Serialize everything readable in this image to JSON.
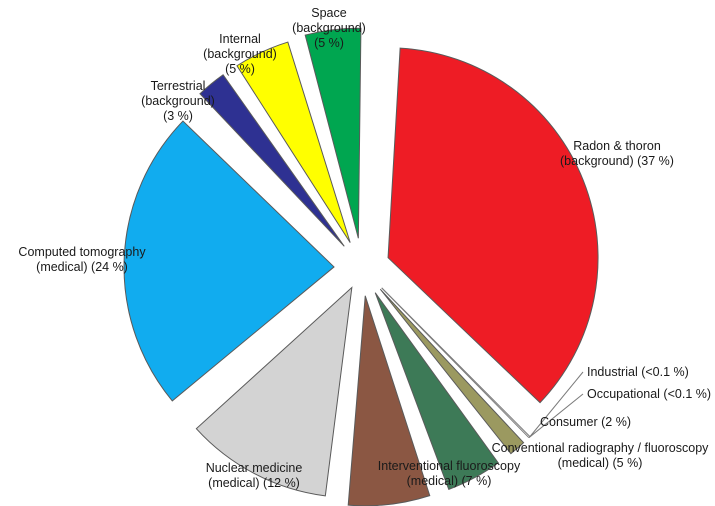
{
  "chart_data": {
    "type": "pie",
    "title": "",
    "slices": [
      {
        "key": "radon",
        "value": 37,
        "color": "#ee1c25",
        "lines": [
          "Radon & thoron",
          "(background) (37 %)"
        ]
      },
      {
        "key": "industrial",
        "value": 0.1,
        "color": "#ffffff",
        "lines": [
          "Industrial (<0.1 %)"
        ]
      },
      {
        "key": "occupational",
        "value": 0.1,
        "color": "#ffffff",
        "lines": [
          "Occupational (<0.1 %)"
        ]
      },
      {
        "key": "consumer",
        "value": 2,
        "color": "#9b9960",
        "lines": [
          "Consumer (2 %)"
        ]
      },
      {
        "key": "conventional",
        "value": 5,
        "color": "#3d7a57",
        "lines": [
          "Conventional radiography / fluoroscopy",
          "(medical) (5 %)"
        ]
      },
      {
        "key": "interventional",
        "value": 7,
        "color": "#8b5743",
        "lines": [
          "Interventional fluoroscopy",
          "(medical) (7 %)"
        ]
      },
      {
        "key": "nuclear",
        "value": 12,
        "color": "#d3d3d3",
        "lines": [
          "Nuclear medicine",
          "(medical) (12 %)"
        ]
      },
      {
        "key": "ct",
        "value": 24,
        "color": "#11acef",
        "lines": [
          "Computed tomography",
          "(medical) (24 %)"
        ]
      },
      {
        "key": "terrestrial",
        "value": 3,
        "color": "#2e3192",
        "lines": [
          "Terrestrial",
          "(background)",
          "(3 %)"
        ]
      },
      {
        "key": "internal",
        "value": 5,
        "color": "#ffff00",
        "lines": [
          "Internal",
          "(background)",
          "(5 %)"
        ]
      },
      {
        "key": "space",
        "value": 5,
        "color": "#00a650",
        "lines": [
          "Space",
          "(background)",
          "(5 %)"
        ]
      }
    ]
  }
}
